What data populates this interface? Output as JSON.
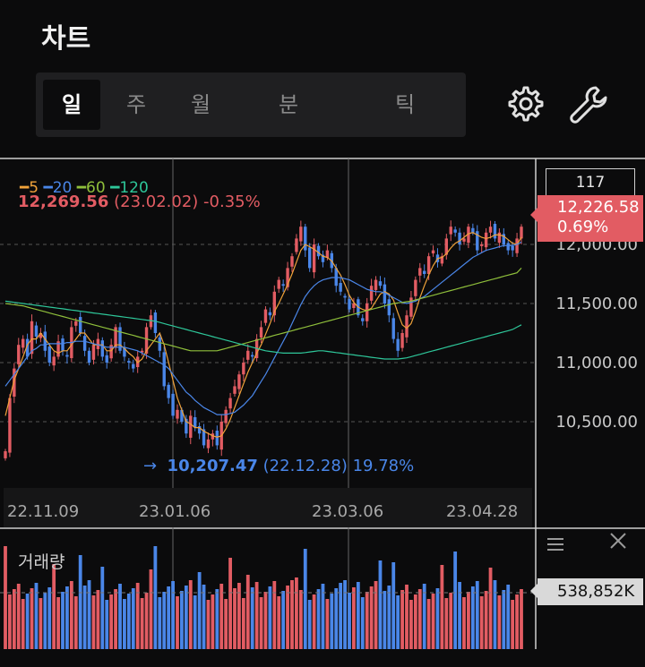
{
  "page": {
    "title": "차트"
  },
  "tabs": [
    {
      "label": "일",
      "active": true
    },
    {
      "label": "주"
    },
    {
      "label": "월"
    },
    {
      "label": "분"
    },
    {
      "label": "틱"
    }
  ],
  "icons": {
    "settings": "gear-icon",
    "tools": "wrench-icon"
  },
  "legend": [
    {
      "label": "5",
      "color": "#f0a23a"
    },
    {
      "label": "20",
      "color": "#4a86e8"
    },
    {
      "label": "60",
      "color": "#8fbf3b"
    },
    {
      "label": "120",
      "color": "#2ec79a"
    }
  ],
  "high_annotation": {
    "value": "12,269.56",
    "date": "(23.02.02)",
    "pct": "-0.35%"
  },
  "low_annotation": {
    "arrow": "→",
    "value": "10,207.47",
    "date": "(22.12.28)",
    "pct": "19.78%"
  },
  "right_panel": {
    "box_value": "117",
    "current_price": "12,226.58",
    "current_change": "0.69%",
    "volume_value": "538,852K",
    "menu_icon": "menu-icon",
    "close_icon": "close-icon"
  },
  "volume_title": "거래량",
  "colors": {
    "up": "#e25c63",
    "down": "#4a86e8",
    "bg": "#0b0b0c"
  },
  "chart_data": {
    "type": "candlestick",
    "y_ticks": [
      "12,000.00",
      "11,500.00",
      "11,000.00",
      "10,500.00"
    ],
    "y_tick_values": [
      12000,
      11500,
      11000,
      10500
    ],
    "x_ticks": [
      "22.11.09",
      "23.01.06",
      "23.03.06",
      "23.04.28"
    ],
    "ylim": [
      10000,
      12450
    ],
    "grid": true,
    "close_series": [
      10250,
      10700,
      10950,
      11150,
      11200,
      11050,
      11350,
      11220,
      11250,
      11100,
      11000,
      11050,
      11180,
      11100,
      11050,
      11300,
      11350,
      11250,
      11100,
      11000,
      11150,
      11200,
      11050,
      11000,
      11150,
      11300,
      11100,
      11050,
      11000,
      10950,
      11050,
      11100,
      11300,
      11400,
      11250,
      11100,
      10800,
      10700,
      10550,
      10600,
      10500,
      10400,
      10550,
      10450,
      10400,
      10300,
      10350,
      10400,
      10300,
      10500,
      10600,
      10700,
      10800,
      10900,
      11000,
      11100,
      11050,
      11200,
      11300,
      11450,
      11400,
      11600,
      11700,
      11650,
      11800,
      11900,
      12050,
      12150,
      11950,
      11800,
      12000,
      11900,
      11850,
      11950,
      11800,
      11650,
      11600,
      11550,
      11450,
      11500,
      11400,
      11350,
      11500,
      11650,
      11700,
      11650,
      11500,
      11400,
      11200,
      11100,
      11250,
      11400,
      11550,
      11700,
      11800,
      11750,
      11900,
      11950,
      11850,
      11900,
      12050,
      12150,
      12100,
      12000,
      12050,
      12150,
      12100,
      11950,
      12000,
      12100,
      12150,
      12050,
      12100,
      12000,
      11950,
      11950,
      12050,
      12150
    ],
    "ma5": [
      10550,
      10700,
      10850,
      10950,
      11050,
      11150,
      11200,
      11200,
      11250,
      11200,
      11150,
      11100,
      11080,
      11100,
      11100,
      11150,
      11200,
      11250,
      11250,
      11200,
      11150,
      11150,
      11150,
      11100,
      11100,
      11150,
      11150,
      11120,
      11080,
      11050,
      11000,
      11030,
      11100,
      11150,
      11200,
      11250,
      11150,
      11000,
      10850,
      10700,
      10600,
      10500,
      10480,
      10450,
      10450,
      10420,
      10400,
      10380,
      10370,
      10380,
      10440,
      10520,
      10620,
      10720,
      10820,
      10920,
      11000,
      11080,
      11150,
      11240,
      11330,
      11430,
      11500,
      11580,
      11660,
      11750,
      11850,
      11950,
      12000,
      11980,
      11960,
      11930,
      11900,
      11890,
      11860,
      11800,
      11740,
      11660,
      11570,
      11510,
      11470,
      11450,
      11440,
      11460,
      11520,
      11580,
      11600,
      11580,
      11530,
      11420,
      11320,
      11290,
      11330,
      11430,
      11550,
      11650,
      11740,
      11820,
      11880,
      11890,
      11920,
      11970,
      12010,
      12030,
      12060,
      12090,
      12100,
      12080,
      12060,
      12050,
      12060,
      12080,
      12080,
      12070,
      12040,
      12010,
      12000,
      12060
    ],
    "ma20": [
      10800,
      10850,
      10900,
      10950,
      11000,
      11050,
      11100,
      11120,
      11150,
      11150,
      11160,
      11160,
      11160,
      11160,
      11170,
      11170,
      11180,
      11180,
      11180,
      11170,
      11160,
      11150,
      11140,
      11130,
      11130,
      11130,
      11130,
      11130,
      11120,
      11110,
      11100,
      11080,
      11060,
      11040,
      11020,
      11000,
      10980,
      10950,
      10900,
      10850,
      10800,
      10750,
      10720,
      10680,
      10650,
      10620,
      10600,
      10580,
      10560,
      10560,
      10560,
      10570,
      10580,
      10610,
      10640,
      10680,
      10720,
      10780,
      10840,
      10900,
      10970,
      11040,
      11110,
      11180,
      11250,
      11330,
      11410,
      11490,
      11560,
      11610,
      11650,
      11680,
      11700,
      11710,
      11720,
      11720,
      11720,
      11710,
      11700,
      11680,
      11660,
      11640,
      11620,
      11610,
      11600,
      11600,
      11590,
      11570,
      11550,
      11530,
      11510,
      11500,
      11510,
      11520,
      11540,
      11560,
      11590,
      11620,
      11650,
      11680,
      11710,
      11740,
      11770,
      11800,
      11830,
      11860,
      11890,
      11910,
      11930,
      11950,
      11960,
      11970,
      11980,
      11990,
      11990,
      11990,
      12000,
      12020
    ],
    "ma60": [
      11500,
      11495,
      11490,
      11485,
      11480,
      11470,
      11460,
      11450,
      11440,
      11430,
      11420,
      11410,
      11400,
      11390,
      11380,
      11370,
      11360,
      11350,
      11340,
      11330,
      11320,
      11310,
      11300,
      11290,
      11280,
      11270,
      11260,
      11250,
      11240,
      11230,
      11220,
      11210,
      11200,
      11190,
      11180,
      11170,
      11160,
      11150,
      11140,
      11130,
      11120,
      11110,
      11100,
      11100,
      11100,
      11100,
      11100,
      11100,
      11100,
      11110,
      11120,
      11130,
      11140,
      11150,
      11160,
      11170,
      11180,
      11190,
      11200,
      11210,
      11220,
      11230,
      11240,
      11250,
      11260,
      11270,
      11280,
      11290,
      11300,
      11310,
      11320,
      11330,
      11340,
      11350,
      11360,
      11370,
      11380,
      11390,
      11400,
      11410,
      11420,
      11430,
      11440,
      11450,
      11460,
      11470,
      11480,
      11490,
      11500,
      11505,
      11510,
      11515,
      11520,
      11530,
      11540,
      11550,
      11560,
      11570,
      11580,
      11590,
      11600,
      11610,
      11620,
      11630,
      11640,
      11650,
      11660,
      11670,
      11680,
      11690,
      11700,
      11710,
      11720,
      11730,
      11740,
      11750,
      11760,
      11800
    ],
    "ma120": [
      11520,
      11515,
      11510,
      11505,
      11500,
      11495,
      11490,
      11485,
      11480,
      11475,
      11470,
      11465,
      11460,
      11455,
      11450,
      11445,
      11440,
      11435,
      11430,
      11425,
      11420,
      11415,
      11410,
      11405,
      11400,
      11395,
      11390,
      11385,
      11380,
      11375,
      11370,
      11365,
      11360,
      11355,
      11350,
      11340,
      11330,
      11320,
      11310,
      11300,
      11290,
      11280,
      11270,
      11260,
      11250,
      11240,
      11230,
      11220,
      11210,
      11200,
      11190,
      11180,
      11170,
      11160,
      11150,
      11140,
      11130,
      11120,
      11110,
      11100,
      11095,
      11090,
      11085,
      11080,
      11080,
      11080,
      11080,
      11080,
      11085,
      11090,
      11095,
      11100,
      11100,
      11095,
      11090,
      11085,
      11080,
      11075,
      11070,
      11065,
      11060,
      11055,
      11050,
      11045,
      11040,
      11035,
      11030,
      11030,
      11030,
      11030,
      11035,
      11040,
      11050,
      11060,
      11070,
      11080,
      11090,
      11100,
      11110,
      11120,
      11130,
      11140,
      11150,
      11160,
      11170,
      11180,
      11190,
      11200,
      11210,
      11220,
      11230,
      11240,
      11250,
      11260,
      11270,
      11280,
      11300,
      11320
    ]
  }
}
